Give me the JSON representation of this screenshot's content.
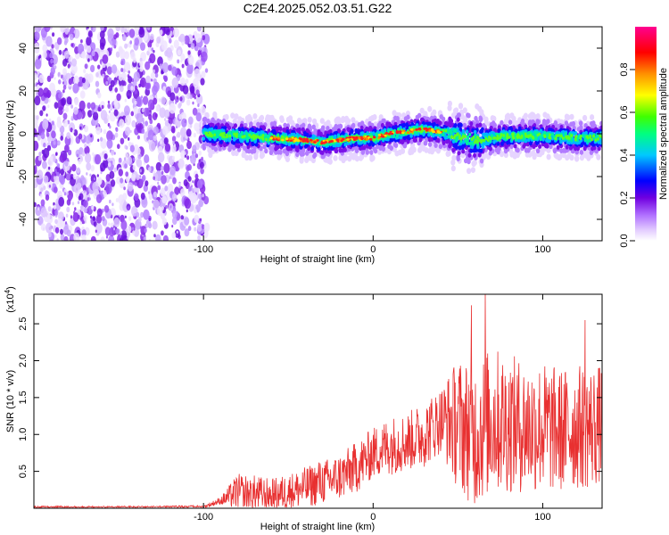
{
  "title": "C2E4.2025.052.03.51.G22",
  "chart_data": [
    {
      "type": "heatmap",
      "xlabel": "Height of straight line (km)",
      "ylabel": "Frequency (Hz)",
      "xlim": [
        -200,
        135
      ],
      "ylim": [
        -50,
        50
      ],
      "xticks": [
        -100,
        0,
        100
      ],
      "xtick_labels": [
        "-100",
        "0",
        "100"
      ],
      "yticks": [
        -40,
        -20,
        0,
        20,
        40
      ],
      "ytick_labels": [
        "-40",
        "-20",
        "0",
        "20",
        "40"
      ],
      "noise_region_x": [
        -200,
        -100
      ],
      "ridge_points": [
        {
          "x": -100,
          "f": 0
        },
        {
          "x": -80,
          "f": -1
        },
        {
          "x": -60,
          "f": -2
        },
        {
          "x": -40,
          "f": -3
        },
        {
          "x": -30,
          "f": -4
        },
        {
          "x": -20,
          "f": -3
        },
        {
          "x": -10,
          "f": -2
        },
        {
          "x": 0,
          "f": -2
        },
        {
          "x": 10,
          "f": 0
        },
        {
          "x": 20,
          "f": 1
        },
        {
          "x": 30,
          "f": 2
        },
        {
          "x": 40,
          "f": 1
        },
        {
          "x": 50,
          "f": -1
        },
        {
          "x": 60,
          "f": -3
        },
        {
          "x": 70,
          "f": -2
        },
        {
          "x": 80,
          "f": -1
        },
        {
          "x": 100,
          "f": -1
        },
        {
          "x": 120,
          "f": -2
        },
        {
          "x": 135,
          "f": -2
        }
      ],
      "colorbar": {
        "label": "Normalized spectral amplitude",
        "range": [
          0.0,
          1.0
        ],
        "ticks": [
          0.0,
          0.2,
          0.4,
          0.6,
          0.8
        ],
        "tick_labels": [
          "0.0",
          "0.2",
          "0.4",
          "0.6",
          "0.8"
        ],
        "colors": [
          "#ffffff",
          "#c9a0ff",
          "#7a00e0",
          "#0000ff",
          "#00c8ff",
          "#00ff80",
          "#60ff00",
          "#ffff00",
          "#ff8000",
          "#ff0000",
          "#ff00a0"
        ]
      }
    },
    {
      "type": "line",
      "xlabel": "Height of straight line (km)",
      "ylabel": "SNR (10 * v/v)",
      "y_multiplier": "(x10",
      "y_multiplier_exp": "4",
      "y_multiplier_close": ")",
      "xlim": [
        -200,
        135
      ],
      "ylim": [
        0,
        2.9
      ],
      "xticks": [
        -100,
        0,
        100
      ],
      "xtick_labels": [
        "-100",
        "0",
        "100"
      ],
      "yticks": [
        0.5,
        1.0,
        1.5,
        2.0,
        2.5
      ],
      "ytick_labels": [
        "0.5",
        "1.0",
        "1.5",
        "2.0",
        "2.5"
      ],
      "color": "#e83030",
      "envelope": {
        "x": [
          -200,
          -100,
          -90,
          -80,
          -70,
          -60,
          -50,
          -40,
          -30,
          -20,
          -10,
          0,
          10,
          20,
          30,
          40,
          50,
          60,
          70,
          80,
          90,
          100,
          110,
          120,
          130,
          135
        ],
        "mean": [
          0.0,
          0.02,
          0.1,
          0.22,
          0.2,
          0.18,
          0.22,
          0.28,
          0.35,
          0.42,
          0.55,
          0.75,
          0.85,
          0.9,
          1.0,
          1.2,
          1.15,
          1.0,
          1.2,
          1.15,
          1.1,
          1.1,
          1.05,
          1.1,
          1.1,
          1.15
        ],
        "amp": [
          0.01,
          0.02,
          0.05,
          0.25,
          0.25,
          0.22,
          0.25,
          0.28,
          0.3,
          0.32,
          0.35,
          0.35,
          0.4,
          0.4,
          0.45,
          0.45,
          0.9,
          1.0,
          1.0,
          0.95,
          0.9,
          0.9,
          0.85,
          0.85,
          0.85,
          0.8
        ]
      },
      "annotated_peaks": [
        {
          "x": -32,
          "y": 0.62
        },
        {
          "x": 58,
          "y": 2.75
        },
        {
          "x": 66,
          "y": 2.9
        },
        {
          "x": 125,
          "y": 2.55
        }
      ]
    }
  ]
}
